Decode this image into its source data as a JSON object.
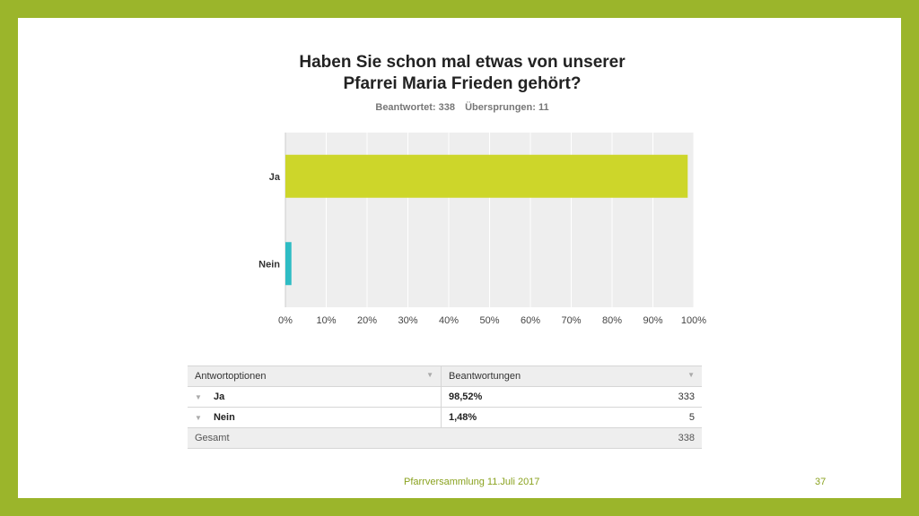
{
  "title_line1": "Haben Sie schon mal etwas von unserer",
  "title_line2": "Pfarrei Maria Frieden gehört?",
  "stats": {
    "answered": "Beantwortet: 338",
    "skipped": "Übersprungen: 11"
  },
  "chart_data": {
    "type": "bar",
    "orientation": "horizontal",
    "categories": [
      "Ja",
      "Nein"
    ],
    "values": [
      98.52,
      1.48
    ],
    "colors": [
      "#cdd62a",
      "#2ebcc4"
    ],
    "xlim": [
      0,
      100
    ],
    "xticks": [
      "0%",
      "10%",
      "20%",
      "30%",
      "40%",
      "50%",
      "60%",
      "70%",
      "80%",
      "90%",
      "100%"
    ],
    "grid": true
  },
  "table": {
    "headers": [
      "Antwortoptionen",
      "Beantwortungen"
    ],
    "rows": [
      {
        "label": "Ja",
        "pct": "98,52%",
        "count": "333"
      },
      {
        "label": "Nein",
        "pct": "1,48%",
        "count": "5"
      }
    ],
    "total_label": "Gesamt",
    "total_count": "338"
  },
  "footer": "Pfarrversammlung 11.Juli 2017",
  "page_number": "37",
  "colors": {
    "frame": "#9bb52b",
    "ja_bar": "#cdd62a",
    "nein_bar": "#2ebcc4",
    "plot_bg": "#eeeeee"
  }
}
